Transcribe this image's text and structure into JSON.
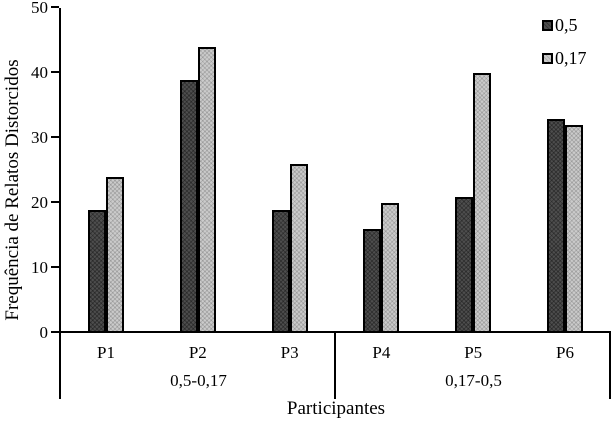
{
  "chart_data": {
    "type": "bar",
    "categories": [
      "P1",
      "P2",
      "P3",
      "P4",
      "P5",
      "P6"
    ],
    "series": [
      {
        "name": "0,5",
        "color": "#4e4e4e",
        "values": [
          19,
          39,
          19,
          16,
          21,
          33
        ]
      },
      {
        "name": "0,17",
        "color": "#cbcbcb",
        "values": [
          24,
          44,
          26,
          20,
          40,
          32
        ]
      }
    ],
    "groups": [
      {
        "label": "0,5-0,17",
        "categories": [
          "P1",
          "P2",
          "P3"
        ]
      },
      {
        "label": "0,17-0,5",
        "categories": [
          "P4",
          "P5",
          "P6"
        ]
      }
    ],
    "title": "",
    "xlabel": "Participantes",
    "ylabel": "Frequência de Relatos Distorcidos",
    "ylim": [
      0,
      50
    ],
    "yticks": [
      0,
      10,
      20,
      30,
      40,
      50
    ],
    "grid": false,
    "legend_position": "top-right",
    "bar_border_color": "#000000",
    "axis_color": "#000000"
  },
  "legend": [
    {
      "label": "0,5",
      "swatch": "dark-gray-hatched"
    },
    {
      "label": "0,17",
      "swatch": "light-gray-hatched"
    }
  ]
}
